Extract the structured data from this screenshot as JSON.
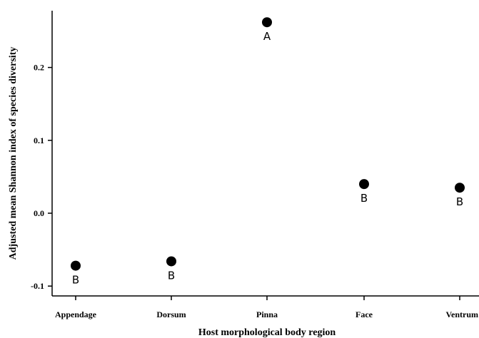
{
  "chart_data": {
    "type": "scatter",
    "title": "",
    "xlabel": "Host morphological body region",
    "ylabel": "Adjusted mean Shannon index of species diversity",
    "categories": [
      "Appendage",
      "Dorsum",
      "Pinna",
      "Face",
      "Ventrum"
    ],
    "values": [
      -0.072,
      -0.066,
      0.262,
      0.04,
      0.035
    ],
    "point_labels": [
      "B",
      "B",
      "A",
      "B",
      "B"
    ],
    "ylim": [
      -0.11,
      0.28
    ],
    "yticks": [
      -0.1,
      0.0,
      0.1,
      0.2
    ],
    "ytick_labels": [
      "-0.1",
      "0.0",
      "0.1",
      "0.2"
    ],
    "grid": false,
    "marker_color": "#000000"
  }
}
